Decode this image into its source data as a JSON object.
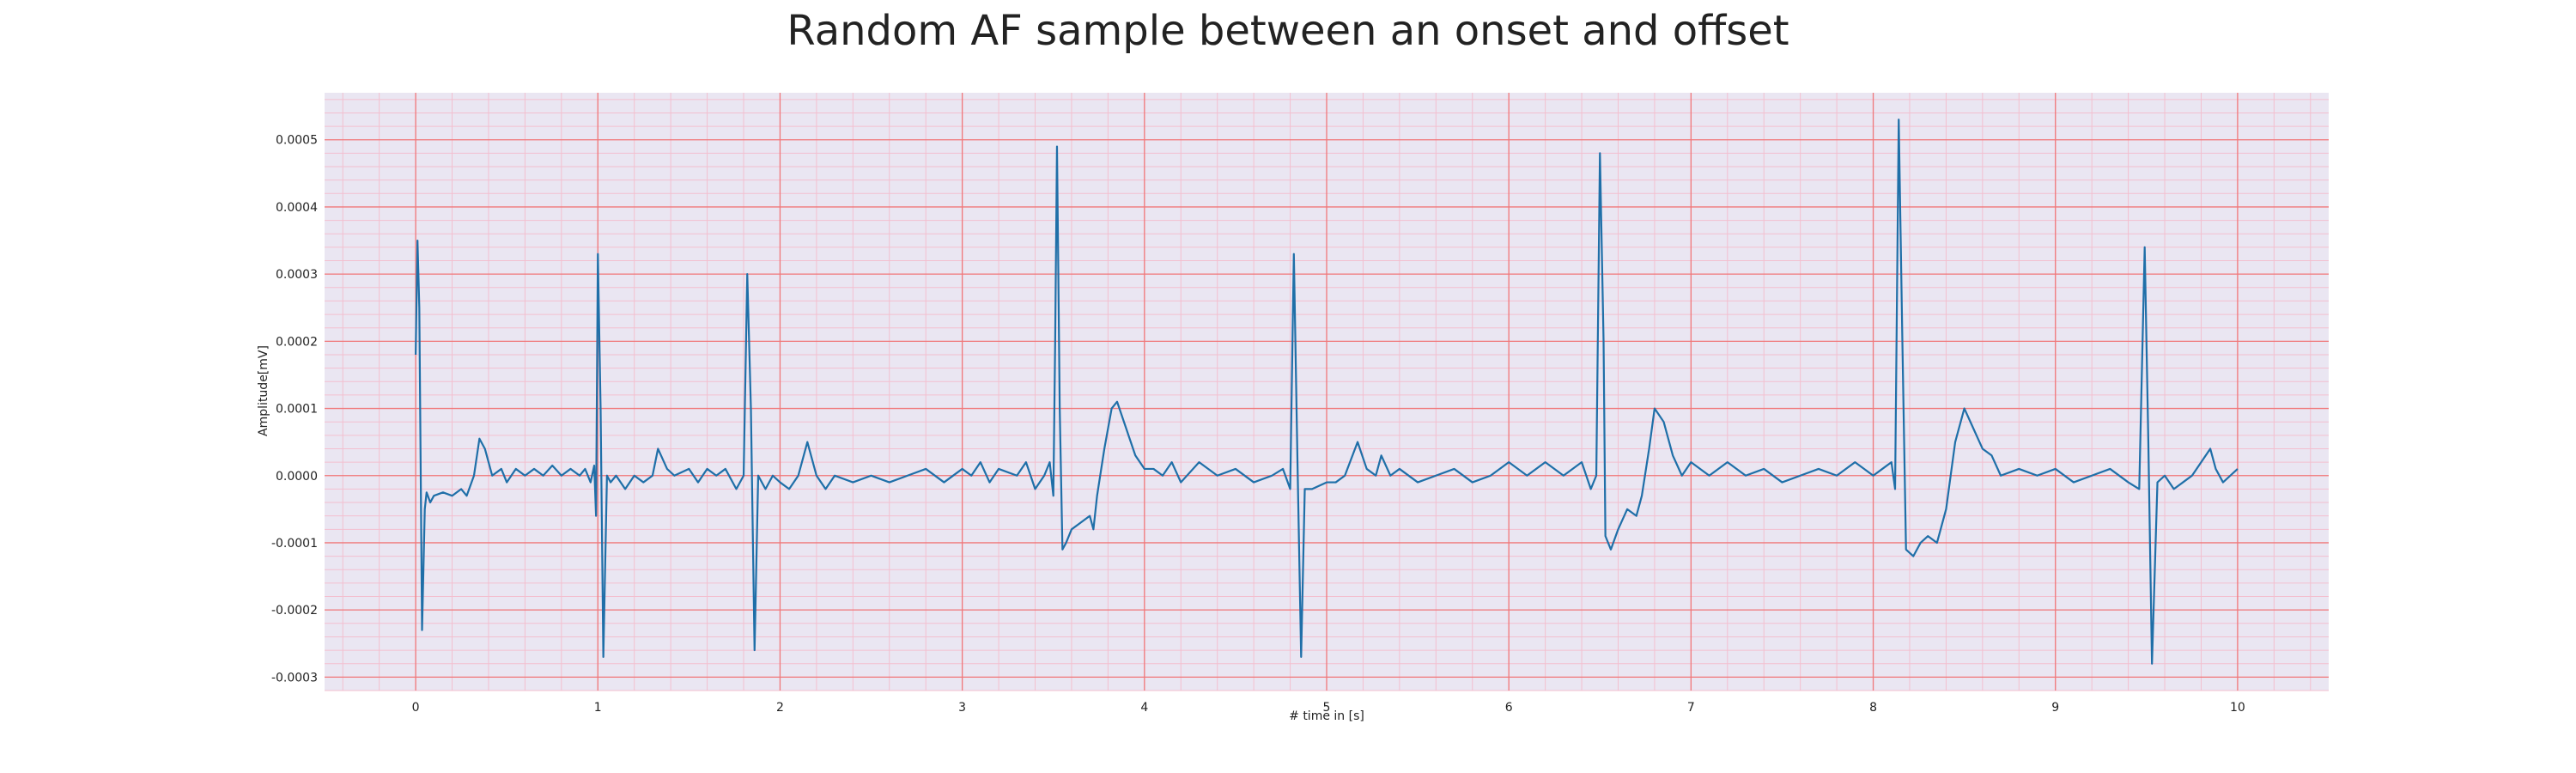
{
  "chart_data": {
    "type": "line",
    "title": "Random AF sample between an onset and offset",
    "xlabel": "# time in [s]",
    "ylabel": "Amplitude[mV]",
    "xlim": [
      -0.5,
      10.5
    ],
    "ylim": [
      -0.00032,
      0.00057
    ],
    "x_ticks": [
      0,
      1,
      2,
      3,
      4,
      5,
      6,
      7,
      8,
      9,
      10
    ],
    "x_tick_labels": [
      "0",
      "1",
      "2",
      "3",
      "4",
      "5",
      "6",
      "7",
      "8",
      "9",
      "10"
    ],
    "y_ticks": [
      -0.0003,
      -0.0002,
      -0.0001,
      0.0,
      0.0001,
      0.0002,
      0.0003,
      0.0004,
      0.0005
    ],
    "y_tick_labels": [
      "-0.0003",
      "-0.0002",
      "-0.0001",
      "0.0000",
      "0.0001",
      "0.0002",
      "0.0003",
      "0.0004",
      "0.0005"
    ],
    "grid": {
      "major": true,
      "minor": true
    },
    "colors": {
      "background": "#eae6f2",
      "line": "#1f6fa8",
      "major_grid": "#f0787a",
      "minor_grid": "#f3bfcf"
    },
    "series": [
      {
        "values": [
          [
            0.0,
            0.00018
          ],
          [
            0.01,
            0.00035
          ],
          [
            0.02,
            0.00025
          ],
          [
            0.035,
            -0.00023
          ],
          [
            0.05,
            -5e-05
          ],
          [
            0.06,
            -2.5e-05
          ],
          [
            0.08,
            -4e-05
          ],
          [
            0.1,
            -3e-05
          ],
          [
            0.15,
            -2.5e-05
          ],
          [
            0.2,
            -3e-05
          ],
          [
            0.25,
            -2e-05
          ],
          [
            0.28,
            -3e-05
          ],
          [
            0.32,
            0.0
          ],
          [
            0.35,
            5.5e-05
          ],
          [
            0.38,
            4e-05
          ],
          [
            0.42,
            0.0
          ],
          [
            0.47,
            1e-05
          ],
          [
            0.5,
            -1e-05
          ],
          [
            0.55,
            1e-05
          ],
          [
            0.6,
            0.0
          ],
          [
            0.65,
            1e-05
          ],
          [
            0.7,
            0.0
          ],
          [
            0.75,
            1.5e-05
          ],
          [
            0.8,
            0.0
          ],
          [
            0.85,
            1e-05
          ],
          [
            0.9,
            0.0
          ],
          [
            0.93,
            1e-05
          ],
          [
            0.96,
            -1e-05
          ],
          [
            0.98,
            1.5e-05
          ],
          [
            0.99,
            -6e-05
          ],
          [
            1.0,
            0.00033
          ],
          [
            1.015,
            0.0001
          ],
          [
            1.03,
            -0.00027
          ],
          [
            1.05,
            0.0
          ],
          [
            1.07,
            -1e-05
          ],
          [
            1.1,
            0.0
          ],
          [
            1.15,
            -2e-05
          ],
          [
            1.2,
            0.0
          ],
          [
            1.25,
            -1e-05
          ],
          [
            1.3,
            0.0
          ],
          [
            1.33,
            4e-05
          ],
          [
            1.38,
            1e-05
          ],
          [
            1.42,
            0.0
          ],
          [
            1.5,
            1e-05
          ],
          [
            1.55,
            -1e-05
          ],
          [
            1.6,
            1e-05
          ],
          [
            1.65,
            0.0
          ],
          [
            1.7,
            1e-05
          ],
          [
            1.76,
            -2e-05
          ],
          [
            1.8,
            0.0
          ],
          [
            1.82,
            0.0003
          ],
          [
            1.84,
            0.0001
          ],
          [
            1.86,
            -0.00026
          ],
          [
            1.88,
            0.0
          ],
          [
            1.92,
            -2e-05
          ],
          [
            1.96,
            0.0
          ],
          [
            2.0,
            -1e-05
          ],
          [
            2.05,
            -2e-05
          ],
          [
            2.1,
            0.0
          ],
          [
            2.15,
            5e-05
          ],
          [
            2.2,
            0.0
          ],
          [
            2.25,
            -2e-05
          ],
          [
            2.3,
            0.0
          ],
          [
            2.4,
            -1e-05
          ],
          [
            2.5,
            0.0
          ],
          [
            2.6,
            -1e-05
          ],
          [
            2.7,
            0.0
          ],
          [
            2.8,
            1e-05
          ],
          [
            2.9,
            -1e-05
          ],
          [
            3.0,
            1e-05
          ],
          [
            3.05,
            0.0
          ],
          [
            3.1,
            2e-05
          ],
          [
            3.15,
            -1e-05
          ],
          [
            3.2,
            1e-05
          ],
          [
            3.3,
            0.0
          ],
          [
            3.35,
            2e-05
          ],
          [
            3.4,
            -2e-05
          ],
          [
            3.45,
            0.0
          ],
          [
            3.48,
            2e-05
          ],
          [
            3.5,
            -3e-05
          ],
          [
            3.51,
            0.0002
          ],
          [
            3.52,
            0.00049
          ],
          [
            3.535,
            0.0001
          ],
          [
            3.55,
            -0.00011
          ],
          [
            3.57,
            -0.0001
          ],
          [
            3.6,
            -8e-05
          ],
          [
            3.65,
            -7e-05
          ],
          [
            3.7,
            -6e-05
          ],
          [
            3.72,
            -8e-05
          ],
          [
            3.74,
            -3e-05
          ],
          [
            3.78,
            4e-05
          ],
          [
            3.82,
            0.0001
          ],
          [
            3.85,
            0.00011
          ],
          [
            3.9,
            7e-05
          ],
          [
            3.95,
            3e-05
          ],
          [
            4.0,
            1e-05
          ],
          [
            4.05,
            1e-05
          ],
          [
            4.1,
            0.0
          ],
          [
            4.15,
            2e-05
          ],
          [
            4.2,
            -1e-05
          ],
          [
            4.3,
            2e-05
          ],
          [
            4.4,
            0.0
          ],
          [
            4.5,
            1e-05
          ],
          [
            4.6,
            -1e-05
          ],
          [
            4.7,
            0.0
          ],
          [
            4.76,
            1e-05
          ],
          [
            4.8,
            -2e-05
          ],
          [
            4.82,
            0.00033
          ],
          [
            4.84,
            2e-05
          ],
          [
            4.86,
            -0.00027
          ],
          [
            4.88,
            -2e-05
          ],
          [
            4.92,
            -2e-05
          ],
          [
            5.0,
            -1e-05
          ],
          [
            5.05,
            -1e-05
          ],
          [
            5.1,
            0.0
          ],
          [
            5.17,
            5e-05
          ],
          [
            5.22,
            1e-05
          ],
          [
            5.27,
            0.0
          ],
          [
            5.3,
            3e-05
          ],
          [
            5.35,
            0.0
          ],
          [
            5.4,
            1e-05
          ],
          [
            5.5,
            -1e-05
          ],
          [
            5.6,
            0.0
          ],
          [
            5.7,
            1e-05
          ],
          [
            5.8,
            -1e-05
          ],
          [
            5.9,
            0.0
          ],
          [
            6.0,
            2e-05
          ],
          [
            6.1,
            0.0
          ],
          [
            6.2,
            2e-05
          ],
          [
            6.3,
            0.0
          ],
          [
            6.4,
            2e-05
          ],
          [
            6.45,
            -2e-05
          ],
          [
            6.48,
            0.0
          ],
          [
            6.5,
            0.00048
          ],
          [
            6.52,
            0.0002
          ],
          [
            6.53,
            -9e-05
          ],
          [
            6.56,
            -0.00011
          ],
          [
            6.6,
            -8e-05
          ],
          [
            6.65,
            -5e-05
          ],
          [
            6.7,
            -6e-05
          ],
          [
            6.73,
            -3e-05
          ],
          [
            6.77,
            4e-05
          ],
          [
            6.8,
            0.0001
          ],
          [
            6.85,
            8e-05
          ],
          [
            6.9,
            3e-05
          ],
          [
            6.95,
            0.0
          ],
          [
            7.0,
            2e-05
          ],
          [
            7.1,
            0.0
          ],
          [
            7.2,
            2e-05
          ],
          [
            7.3,
            0.0
          ],
          [
            7.4,
            1e-05
          ],
          [
            7.5,
            -1e-05
          ],
          [
            7.6,
            0.0
          ],
          [
            7.7,
            1e-05
          ],
          [
            7.8,
            0.0
          ],
          [
            7.9,
            2e-05
          ],
          [
            8.0,
            0.0
          ],
          [
            8.05,
            1e-05
          ],
          [
            8.1,
            2e-05
          ],
          [
            8.12,
            -2e-05
          ],
          [
            8.14,
            0.00053
          ],
          [
            8.16,
            0.0002
          ],
          [
            8.18,
            -0.00011
          ],
          [
            8.22,
            -0.00012
          ],
          [
            8.26,
            -0.0001
          ],
          [
            8.3,
            -9e-05
          ],
          [
            8.35,
            -0.0001
          ],
          [
            8.4,
            -5e-05
          ],
          [
            8.45,
            5e-05
          ],
          [
            8.5,
            0.0001
          ],
          [
            8.55,
            7e-05
          ],
          [
            8.6,
            4e-05
          ],
          [
            8.65,
            3e-05
          ],
          [
            8.7,
            0.0
          ],
          [
            8.8,
            1e-05
          ],
          [
            8.9,
            0.0
          ],
          [
            9.0,
            1e-05
          ],
          [
            9.1,
            -1e-05
          ],
          [
            9.2,
            0.0
          ],
          [
            9.3,
            1e-05
          ],
          [
            9.4,
            -1e-05
          ],
          [
            9.46,
            -2e-05
          ],
          [
            9.49,
            0.00034
          ],
          [
            9.51,
            5e-05
          ],
          [
            9.53,
            -0.00028
          ],
          [
            9.56,
            -1e-05
          ],
          [
            9.6,
            0.0
          ],
          [
            9.65,
            -2e-05
          ],
          [
            9.7,
            -1e-05
          ],
          [
            9.75,
            0.0
          ],
          [
            9.8,
            2e-05
          ],
          [
            9.85,
            4e-05
          ],
          [
            9.88,
            1e-05
          ],
          [
            9.92,
            -1e-05
          ],
          [
            9.96,
            0.0
          ],
          [
            10.0,
            1e-05
          ]
        ]
      }
    ]
  }
}
